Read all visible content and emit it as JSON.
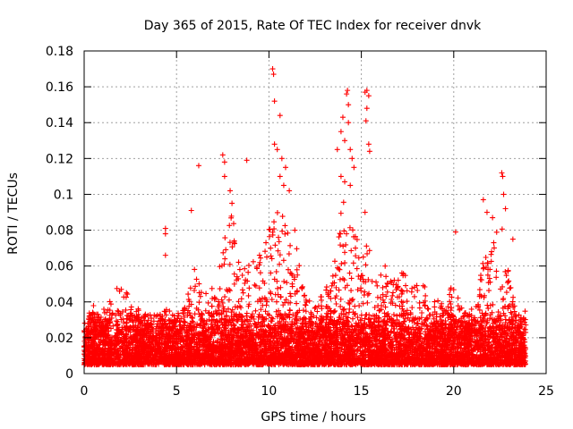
{
  "chart_data": {
    "type": "scatter",
    "title": "Day 365 of 2015, Rate Of TEC Index for receiver dnvk",
    "xlabel": "GPS time / hours",
    "ylabel": "ROTI / TECUs",
    "xlim": [
      0,
      25
    ],
    "ylim": [
      0,
      0.18
    ],
    "xticks": [
      0,
      5,
      10,
      15,
      20,
      25
    ],
    "xtick_labels": [
      "0",
      "5",
      "10",
      "15",
      "20",
      "25"
    ],
    "yticks": [
      0,
      0.02,
      0.04,
      0.06,
      0.08,
      0.1,
      0.12,
      0.14,
      0.16,
      0.18
    ],
    "ytick_labels": [
      "0",
      "0.02",
      "0.04",
      "0.06",
      "0.08",
      "0.1",
      "0.12",
      "0.14",
      "0.16",
      "0.18"
    ],
    "grid": true,
    "marker": "plus",
    "color": "#ff0000",
    "data_range": {
      "x": [
        0,
        23.9
      ]
    },
    "dense_band": {
      "description": "Continuous dense band of ROTI values between roughly 0.005 and 0.03 TECU/min across all hours",
      "y_low": 0.005,
      "y_high": 0.03
    },
    "envelope_peaks": [
      {
        "x": 0.0,
        "y": 0.022
      },
      {
        "x": 0.5,
        "y": 0.04
      },
      {
        "x": 1.0,
        "y": 0.03
      },
      {
        "x": 1.7,
        "y": 0.05
      },
      {
        "x": 2.5,
        "y": 0.045
      },
      {
        "x": 3.0,
        "y": 0.035
      },
      {
        "x": 3.5,
        "y": 0.028
      },
      {
        "x": 4.0,
        "y": 0.03
      },
      {
        "x": 4.5,
        "y": 0.04
      },
      {
        "x": 5.0,
        "y": 0.03
      },
      {
        "x": 5.5,
        "y": 0.04
      },
      {
        "x": 6.0,
        "y": 0.06
      },
      {
        "x": 6.5,
        "y": 0.045
      },
      {
        "x": 7.0,
        "y": 0.05
      },
      {
        "x": 7.5,
        "y": 0.08
      },
      {
        "x": 8.0,
        "y": 0.09
      },
      {
        "x": 8.5,
        "y": 0.065
      },
      {
        "x": 9.0,
        "y": 0.06
      },
      {
        "x": 9.5,
        "y": 0.07
      },
      {
        "x": 10.0,
        "y": 0.085
      },
      {
        "x": 10.5,
        "y": 0.1
      },
      {
        "x": 11.0,
        "y": 0.08
      },
      {
        "x": 11.5,
        "y": 0.07
      },
      {
        "x": 12.0,
        "y": 0.045
      },
      {
        "x": 12.5,
        "y": 0.04
      },
      {
        "x": 13.0,
        "y": 0.045
      },
      {
        "x": 13.5,
        "y": 0.07
      },
      {
        "x": 14.0,
        "y": 0.1
      },
      {
        "x": 14.5,
        "y": 0.09
      },
      {
        "x": 15.0,
        "y": 0.08
      },
      {
        "x": 15.5,
        "y": 0.07
      },
      {
        "x": 16.0,
        "y": 0.06
      },
      {
        "x": 16.5,
        "y": 0.06
      },
      {
        "x": 17.0,
        "y": 0.06
      },
      {
        "x": 17.5,
        "y": 0.055
      },
      {
        "x": 18.0,
        "y": 0.05
      },
      {
        "x": 18.5,
        "y": 0.05
      },
      {
        "x": 19.0,
        "y": 0.04
      },
      {
        "x": 19.5,
        "y": 0.045
      },
      {
        "x": 20.0,
        "y": 0.05
      },
      {
        "x": 20.5,
        "y": 0.035
      },
      {
        "x": 21.0,
        "y": 0.04
      },
      {
        "x": 21.5,
        "y": 0.06
      },
      {
        "x": 22.0,
        "y": 0.075
      },
      {
        "x": 22.5,
        "y": 0.09
      },
      {
        "x": 23.0,
        "y": 0.055
      },
      {
        "x": 23.5,
        "y": 0.04
      },
      {
        "x": 23.9,
        "y": 0.03
      }
    ],
    "notable_points": [
      {
        "x": 4.4,
        "y": 0.081
      },
      {
        "x": 4.4,
        "y": 0.078
      },
      {
        "x": 4.4,
        "y": 0.066
      },
      {
        "x": 5.8,
        "y": 0.091
      },
      {
        "x": 6.2,
        "y": 0.116
      },
      {
        "x": 7.5,
        "y": 0.122
      },
      {
        "x": 7.6,
        "y": 0.118
      },
      {
        "x": 7.6,
        "y": 0.11
      },
      {
        "x": 7.9,
        "y": 0.102
      },
      {
        "x": 8.0,
        "y": 0.095
      },
      {
        "x": 8.8,
        "y": 0.119
      },
      {
        "x": 10.2,
        "y": 0.17
      },
      {
        "x": 10.25,
        "y": 0.167
      },
      {
        "x": 10.3,
        "y": 0.152
      },
      {
        "x": 10.6,
        "y": 0.144
      },
      {
        "x": 10.3,
        "y": 0.128
      },
      {
        "x": 10.45,
        "y": 0.125
      },
      {
        "x": 10.7,
        "y": 0.12
      },
      {
        "x": 10.9,
        "y": 0.115
      },
      {
        "x": 10.6,
        "y": 0.11
      },
      {
        "x": 10.8,
        "y": 0.105
      },
      {
        "x": 11.1,
        "y": 0.102
      },
      {
        "x": 11.4,
        "y": 0.08
      },
      {
        "x": 13.7,
        "y": 0.125
      },
      {
        "x": 13.9,
        "y": 0.135
      },
      {
        "x": 14.0,
        "y": 0.143
      },
      {
        "x": 14.1,
        "y": 0.13
      },
      {
        "x": 14.2,
        "y": 0.156
      },
      {
        "x": 14.25,
        "y": 0.158
      },
      {
        "x": 14.3,
        "y": 0.15
      },
      {
        "x": 14.3,
        "y": 0.14
      },
      {
        "x": 14.4,
        "y": 0.125
      },
      {
        "x": 14.5,
        "y": 0.12
      },
      {
        "x": 14.6,
        "y": 0.115
      },
      {
        "x": 14.4,
        "y": 0.105
      },
      {
        "x": 13.9,
        "y": 0.11
      },
      {
        "x": 14.1,
        "y": 0.107
      },
      {
        "x": 15.2,
        "y": 0.157
      },
      {
        "x": 15.3,
        "y": 0.158
      },
      {
        "x": 15.4,
        "y": 0.155
      },
      {
        "x": 15.3,
        "y": 0.148
      },
      {
        "x": 15.25,
        "y": 0.141
      },
      {
        "x": 15.4,
        "y": 0.128
      },
      {
        "x": 15.45,
        "y": 0.124
      },
      {
        "x": 15.2,
        "y": 0.09
      },
      {
        "x": 20.1,
        "y": 0.079
      },
      {
        "x": 21.6,
        "y": 0.097
      },
      {
        "x": 21.8,
        "y": 0.09
      },
      {
        "x": 22.1,
        "y": 0.087
      },
      {
        "x": 22.6,
        "y": 0.112
      },
      {
        "x": 22.65,
        "y": 0.11
      },
      {
        "x": 22.7,
        "y": 0.1
      },
      {
        "x": 22.8,
        "y": 0.092
      },
      {
        "x": 23.2,
        "y": 0.075
      }
    ]
  }
}
